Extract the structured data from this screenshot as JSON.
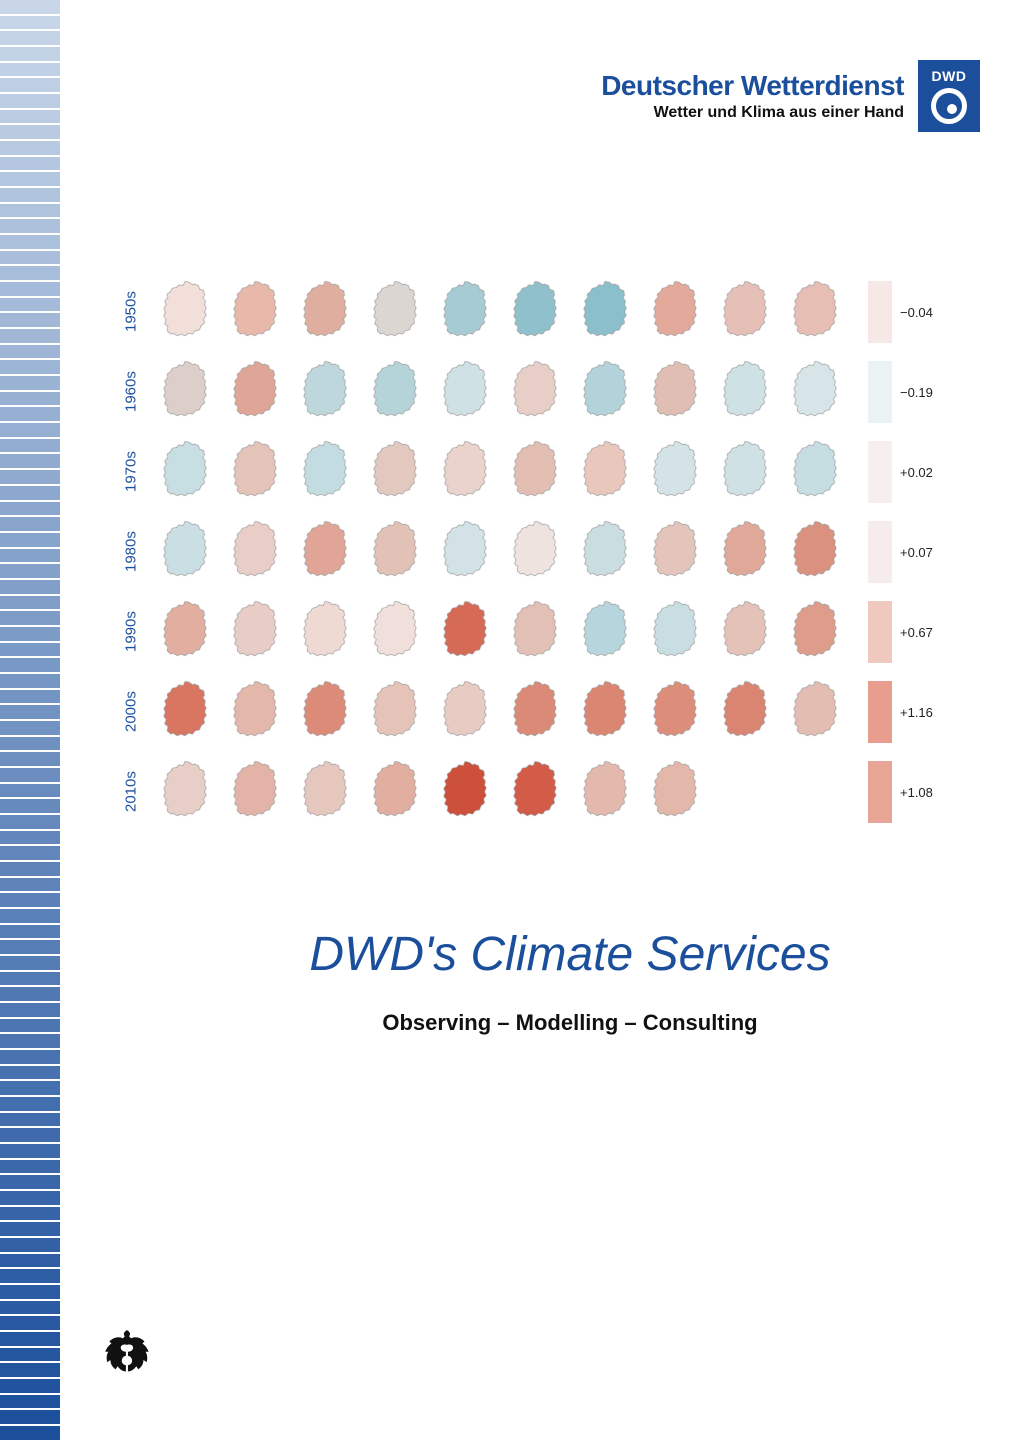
{
  "header": {
    "brand_main": "Deutscher Wetterdienst",
    "brand_sub": "Wetter und Klima aus einer Hand",
    "logo_text": "DWD"
  },
  "title": {
    "main": "DWD's Climate Services",
    "sub": "Observing – Modelling – Consulting"
  },
  "chart": {
    "type": "small-multiples-map-grid",
    "row_label_color": "#1b4f9c",
    "row_label_fontsize": 15,
    "value_fontsize": 13,
    "background_color": "#ffffff",
    "cool_color": "#7db8c8",
    "neutral_color": "#f1efef",
    "warm_color": "#e08a78",
    "hot_color": "#cc4d3a",
    "decades": [
      {
        "label": "1950s",
        "value_label": "−0.04",
        "value": -0.04,
        "bar_color": "#f5e8e6",
        "maps": [
          "#f2dfda",
          "#e8b8ab",
          "#e0ae9f",
          "#dcd6d3",
          "#a7cbd3",
          "#8fc0cc",
          "#8abfcb",
          "#e3a99a",
          "#e6c0b6",
          "#e7beb3"
        ]
      },
      {
        "label": "1960s",
        "value_label": "−0.19",
        "value": -0.19,
        "bar_color": "#eaf2f4",
        "maps": [
          "#dccfca",
          "#dfa596",
          "#bdd7dc",
          "#b4d4da",
          "#cfe1e5",
          "#e7cfc8",
          "#b3d3da",
          "#e0beb3",
          "#cee1e4",
          "#d8e5e8"
        ]
      },
      {
        "label": "1970s",
        "value_label": "+0.02",
        "value": 0.02,
        "bar_color": "#f7efee",
        "maps": [
          "#c7dee2",
          "#e4c3b9",
          "#c3dce1",
          "#e3c8bf",
          "#e9d3cc",
          "#e3beb2",
          "#eac7bd",
          "#d4e3e6",
          "#d0e1e5",
          "#c6dde2"
        ]
      },
      {
        "label": "1980s",
        "value_label": "+0.07",
        "value": 0.07,
        "bar_color": "#f6eceb",
        "maps": [
          "#c9dfe3",
          "#e8cec6",
          "#e0a596",
          "#e2c1b7",
          "#d2e2e6",
          "#eee3df",
          "#cadee2",
          "#e4c5bb",
          "#e0a898",
          "#da917f"
        ]
      },
      {
        "label": "1990s",
        "value_label": "+0.67",
        "value": 0.67,
        "bar_color": "#efc8c0",
        "maps": [
          "#e2aea0",
          "#e7cdc5",
          "#eed9d3",
          "#f0dfdb",
          "#d56b56",
          "#e2c0b6",
          "#b7d5dc",
          "#c8dee2",
          "#e4c2b8",
          "#de9c8b"
        ]
      },
      {
        "label": "2000s",
        "value_label": "+1.16",
        "value": 1.16,
        "bar_color": "#e79e8e",
        "maps": [
          "#d87662",
          "#e3b7aa",
          "#dc8b78",
          "#e5c3b9",
          "#e8cbc3",
          "#da8a77",
          "#da8673",
          "#dc8e7b",
          "#da8572",
          "#e4bdb2"
        ]
      },
      {
        "label": "2010s",
        "value_label": "+1.08",
        "value": 1.08,
        "bar_color": "#e8a495",
        "maps": [
          "#e7cfc8",
          "#e2b3a6",
          "#e6c7be",
          "#e1aea0",
          "#cd503a",
          "#d25c47",
          "#e3b9ad",
          "#e3b8ab"
        ]
      }
    ]
  },
  "edge_stripe": {
    "bar_count": 92,
    "top_color": "#c8d6e8",
    "bottom_color": "#1b4f9c"
  }
}
